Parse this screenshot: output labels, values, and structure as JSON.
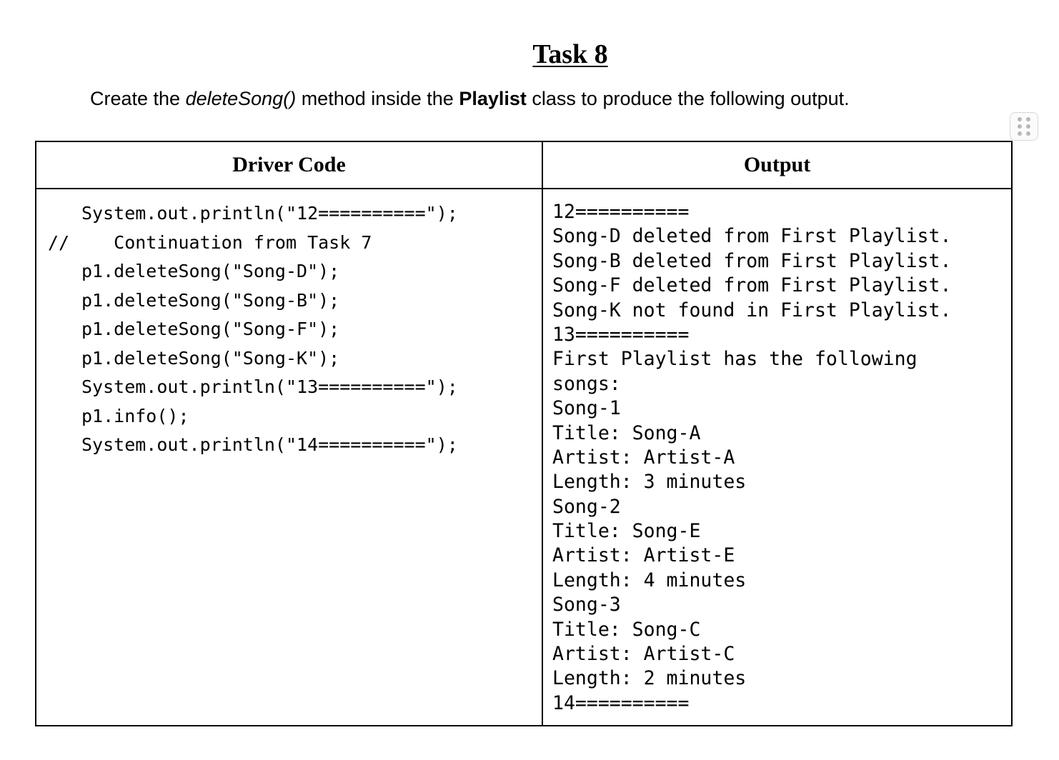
{
  "task_title": "Task 8",
  "instruction": {
    "part1": "Create the ",
    "method": "deleteSong()",
    "part2": " method inside the ",
    "class_name": "Playlist",
    "part3": " class to produce the following output."
  },
  "table": {
    "headers": [
      "Driver Code",
      "Output"
    ],
    "driver_code": [
      {
        "prefix": "",
        "text": "System.out.println(\"12==========\");"
      },
      {
        "prefix": "//",
        "text": "   Continuation from Task 7"
      },
      {
        "prefix": "",
        "text": "p1.deleteSong(\"Song-D\");"
      },
      {
        "prefix": "",
        "text": "p1.deleteSong(\"Song-B\");"
      },
      {
        "prefix": "",
        "text": "p1.deleteSong(\"Song-F\");"
      },
      {
        "prefix": "",
        "text": "p1.deleteSong(\"Song-K\");"
      },
      {
        "prefix": "",
        "text": "System.out.println(\"13==========\");"
      },
      {
        "prefix": "",
        "text": "p1.info();"
      },
      {
        "prefix": "",
        "text": "System.out.println(\"14==========\");"
      }
    ],
    "output": [
      "12==========",
      "Song-D deleted from First Playlist.",
      "Song-B deleted from First Playlist.",
      "Song-F deleted from First Playlist.",
      "Song-K not found in First Playlist.",
      "13==========",
      "First Playlist has the following",
      "songs:",
      "Song-1",
      "Title: Song-A",
      "Artist: Artist-A",
      "Length: 3 minutes",
      "Song-2",
      "Title: Song-E",
      "Artist: Artist-E",
      "Length: 4 minutes",
      "Song-3",
      "Title: Song-C",
      "Artist: Artist-C",
      "Length: 2 minutes",
      "14=========="
    ]
  }
}
